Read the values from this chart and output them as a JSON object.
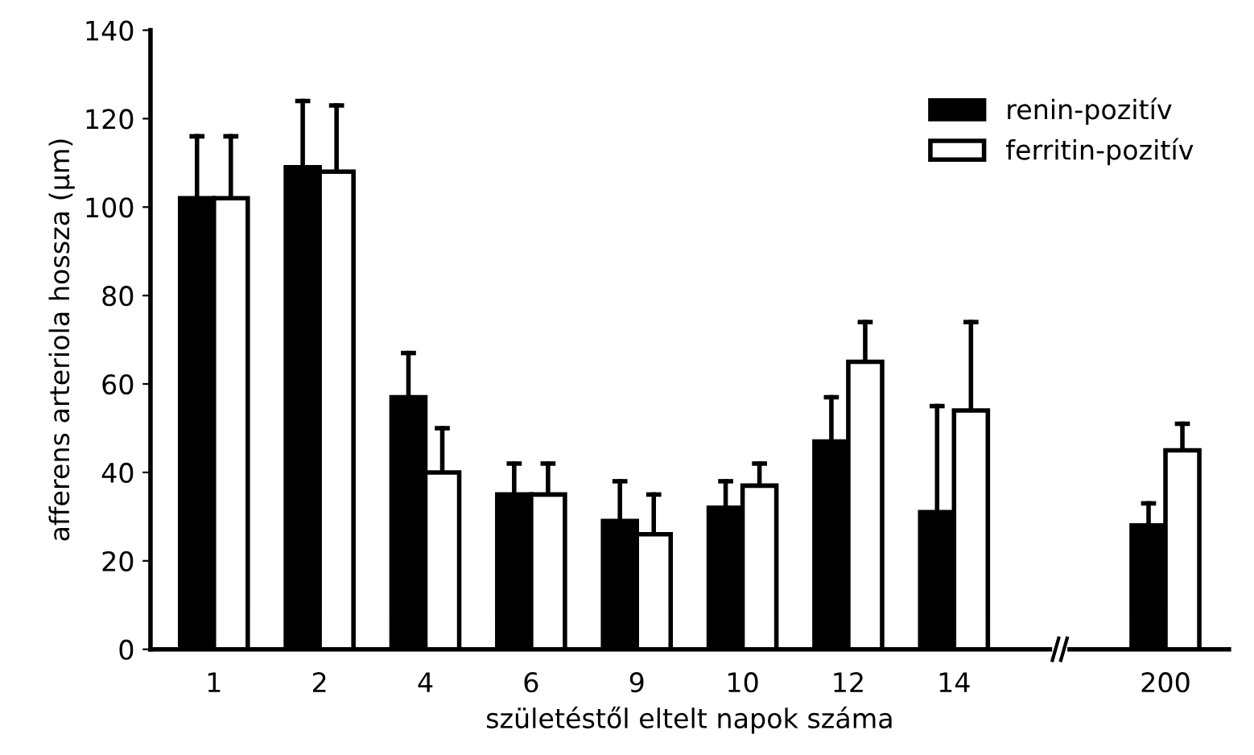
{
  "chart_data": {
    "type": "bar",
    "xlabel": "születéstől eltelt napok száma",
    "ylabel": "afferens arteriola hossza (µm)",
    "categories": [
      "1",
      "2",
      "4",
      "6",
      "9",
      "10",
      "12",
      "14",
      null,
      "200"
    ],
    "series": [
      {
        "name": "renin-pozitív",
        "color": "#000000",
        "values": [
          102,
          109,
          57,
          35,
          29,
          32,
          47,
          31,
          null,
          28
        ],
        "errors": [
          [
            102,
            116
          ],
          [
            109,
            124
          ],
          [
            57,
            67
          ],
          [
            35,
            42
          ],
          [
            29,
            38
          ],
          [
            32,
            38
          ],
          [
            47,
            57
          ],
          [
            31,
            55
          ],
          null,
          [
            28,
            33
          ]
        ]
      },
      {
        "name": "ferritin-pozitív",
        "color": "#ffffff",
        "values": [
          102,
          108,
          40,
          35,
          26,
          37,
          65,
          54,
          null,
          45
        ],
        "errors": [
          [
            102,
            116
          ],
          [
            108,
            123
          ],
          [
            40,
            50
          ],
          [
            35,
            42
          ],
          [
            26,
            35
          ],
          [
            37,
            42
          ],
          [
            65,
            74
          ],
          [
            54,
            74
          ],
          null,
          [
            45,
            51
          ]
        ]
      }
    ],
    "ylim": [
      0,
      140
    ],
    "yticks": [
      0,
      20,
      40,
      60,
      80,
      100,
      120,
      140
    ],
    "grid": false,
    "legend": "top right"
  }
}
